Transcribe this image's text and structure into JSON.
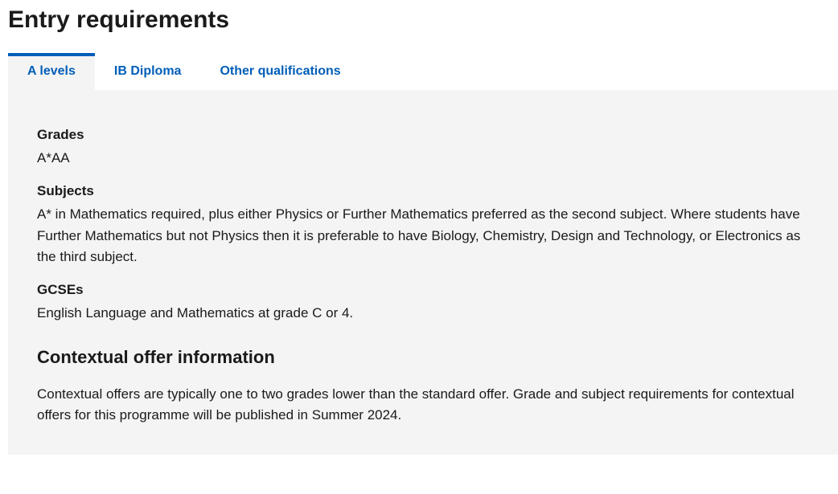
{
  "heading": "Entry requirements",
  "tabs": {
    "items": [
      {
        "label": "A levels",
        "active": true
      },
      {
        "label": "IB Diploma",
        "active": false
      },
      {
        "label": "Other qualifications",
        "active": false
      }
    ]
  },
  "panel": {
    "grades": {
      "label": "Grades",
      "value": "A*AA"
    },
    "subjects": {
      "label": "Subjects",
      "value": "A* in Mathematics required, plus either Physics or Further Mathematics preferred as the second subject. Where students have Further Mathematics but not Physics then it is preferable to have Biology, Chemistry, Design and Technology, or Electronics as the third subject."
    },
    "gcses": {
      "label": "GCSEs",
      "value": "English Language and Mathematics at grade C or 4."
    },
    "contextual": {
      "heading": "Contextual offer information",
      "text": "Contextual offers are typically one to two grades lower than the standard offer. Grade and subject requirements for contextual offers for this programme will be published in Summer 2024."
    }
  },
  "colors": {
    "accent": "#005eb8",
    "panel_bg": "#f4f4f4",
    "text": "#1a1a1a",
    "page_bg": "#ffffff"
  },
  "typography": {
    "heading_fontsize": 30,
    "tab_fontsize": 16,
    "body_fontsize": 17,
    "subheading_fontsize": 22
  }
}
